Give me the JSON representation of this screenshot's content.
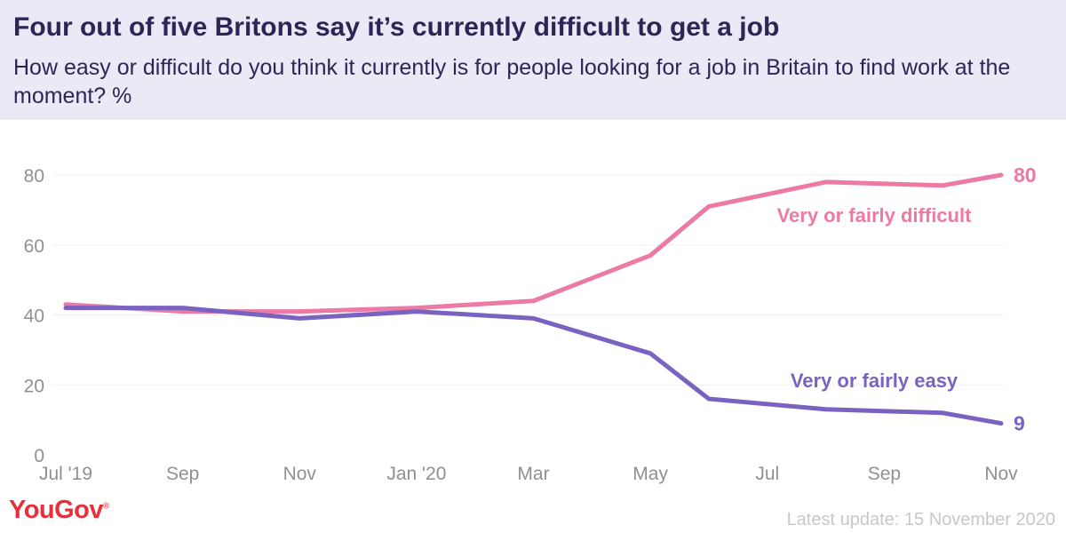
{
  "header": {
    "title": "Four out of five Britons say it’s currently difficult to get a job",
    "subtitle": "How easy or difficult do you think it currently is for people looking for a job in Britain to find work at the moment? %"
  },
  "footer": {
    "logo": "YouGov",
    "logo_mark": "®",
    "update": "Latest update: 15 November 2020"
  },
  "colors": {
    "difficult": "#ec7aa4",
    "easy": "#7a63c0",
    "text": "#2e2556",
    "axis": "#8f8f97",
    "grid": "#f1f1f3"
  },
  "chart_data": {
    "type": "line",
    "title": "Four out of five Britons say it’s currently difficult to get a job",
    "xlabel": "",
    "ylabel": "",
    "ylim": [
      0,
      90
    ],
    "yticks": [
      0,
      20,
      40,
      60,
      80
    ],
    "grid": true,
    "x_ticks": [
      "Jul '19",
      "Sep",
      "Nov",
      "Jan '20",
      "Mar",
      "May",
      "Jul",
      "Sep",
      "Nov"
    ],
    "x": [
      "2019-07",
      "2019-08",
      "2019-09",
      "2019-10",
      "2019-11",
      "2019-12",
      "2020-01",
      "2020-02",
      "2020-03",
      "2020-04",
      "2020-05",
      "2020-06",
      "2020-07",
      "2020-08",
      "2020-09",
      "2020-10",
      "2020-11"
    ],
    "series": [
      {
        "name": "Very or fairly difficult",
        "color": "#ec7aa4",
        "values": [
          43,
          null,
          41,
          null,
          41,
          null,
          42,
          null,
          44,
          null,
          57,
          71,
          null,
          78,
          null,
          77,
          80
        ],
        "end_label": "80"
      },
      {
        "name": "Very or fairly easy",
        "color": "#7a63c0",
        "values": [
          42,
          null,
          42,
          null,
          39,
          null,
          41,
          null,
          39,
          null,
          29,
          16,
          null,
          13,
          null,
          12,
          9
        ],
        "end_label": "9"
      }
    ]
  }
}
